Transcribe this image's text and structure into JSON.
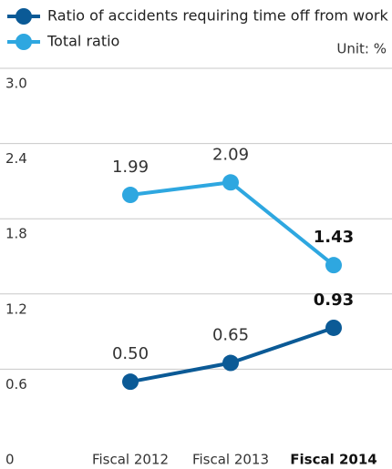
{
  "chart_data": {
    "type": "line",
    "unit": "Unit: %",
    "categories": [
      "Fiscal 2012",
      "Fiscal 2013",
      "Fiscal 2014"
    ],
    "series": [
      {
        "name": "Ratio of accidents requiring time off from work",
        "color": "#0b5a96",
        "values": [
          0.5,
          0.65,
          0.93
        ],
        "value_labels": [
          "0.50",
          "0.65",
          "0.93"
        ]
      },
      {
        "name": "Total ratio",
        "color": "#2ea7e0",
        "values": [
          1.99,
          2.09,
          1.43
        ],
        "value_labels": [
          "1.99",
          "2.09",
          "1.43"
        ]
      }
    ],
    "ylim": [
      0,
      3
    ],
    "yticks": [
      0,
      0.6,
      1.2,
      1.8,
      2.4,
      {
        "value": 3,
        "label": "3.0"
      }
    ],
    "grid": true
  }
}
